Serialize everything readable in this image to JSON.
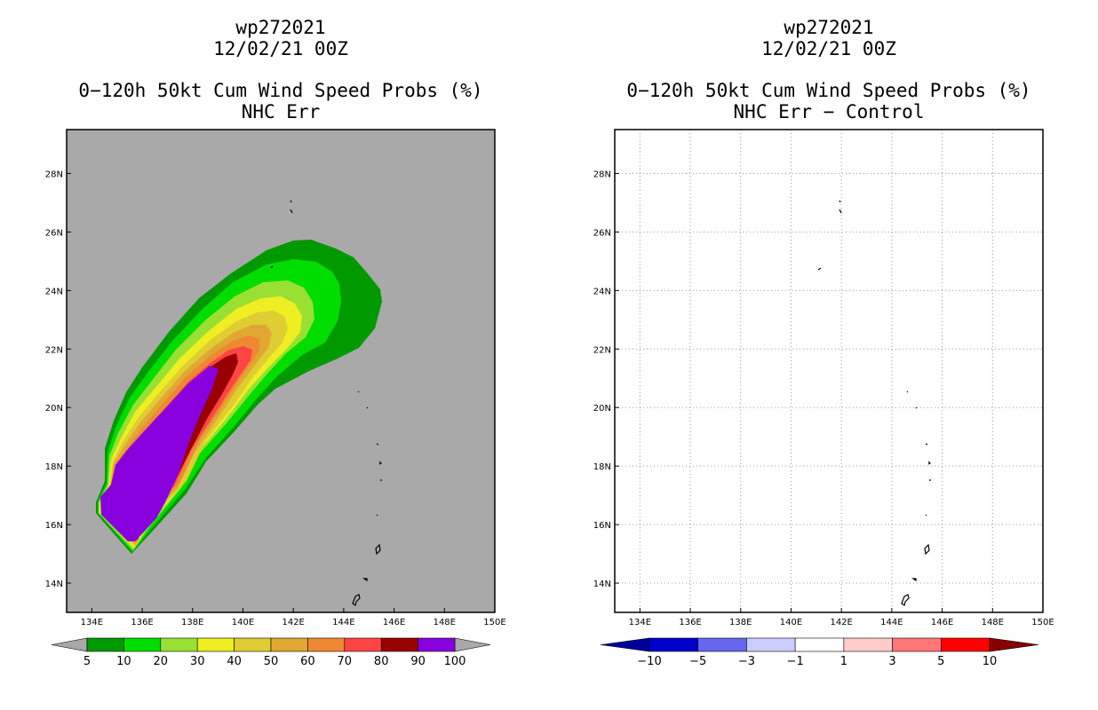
{
  "chart_data": [
    {
      "type": "heatmap",
      "title_lines": [
        "wp272021",
        "12/02/21 00Z"
      ],
      "subtitle_lines": [
        "0−120h 50kt Cum Wind Speed Probs (%)",
        "NHC Err"
      ],
      "xlim": [
        133,
        150
      ],
      "ylim": [
        13,
        29.5
      ],
      "x_ticks": [
        "134E",
        "136E",
        "138E",
        "140E",
        "142E",
        "144E",
        "146E",
        "148E",
        "150E"
      ],
      "y_ticks": [
        "14N",
        "16N",
        "18N",
        "20N",
        "22N",
        "24N",
        "26N",
        "28N"
      ],
      "background": "#a9a9a9",
      "colorbar": {
        "levels": [
          "5",
          "10",
          "20",
          "30",
          "40",
          "50",
          "60",
          "70",
          "80",
          "90",
          "100"
        ],
        "colors": [
          "#009900",
          "#00dd00",
          "#99e033",
          "#eeee22",
          "#e0cc33",
          "#e0a833",
          "#ee8833",
          "#ff4444",
          "#990000",
          "#8800dd"
        ],
        "under_color": "#a9a9a9",
        "over_color": "#a9a9a9"
      }
    },
    {
      "type": "heatmap",
      "title_lines": [
        "wp272021",
        "12/02/21 00Z"
      ],
      "subtitle_lines": [
        "0−120h 50kt Cum Wind Speed Probs (%)",
        "NHC Err − Control"
      ],
      "xlim": [
        133,
        150
      ],
      "ylim": [
        13,
        29.5
      ],
      "x_ticks": [
        "134E",
        "136E",
        "138E",
        "140E",
        "142E",
        "144E",
        "146E",
        "148E",
        "150E"
      ],
      "y_ticks": [
        "14N",
        "16N",
        "18N",
        "20N",
        "22N",
        "24N",
        "26N",
        "28N"
      ],
      "background": "#ffffff",
      "grid": true,
      "colorbar": {
        "levels": [
          "−10",
          "−5",
          "−3",
          "−1",
          "1",
          "3",
          "5",
          "10"
        ],
        "colors": [
          "#0000cc",
          "#6666ee",
          "#ccccff",
          "#ffffff",
          "#ffcccc",
          "#ff7777",
          "#ff0000"
        ],
        "under_color": "#000099",
        "over_color": "#880000"
      }
    }
  ]
}
